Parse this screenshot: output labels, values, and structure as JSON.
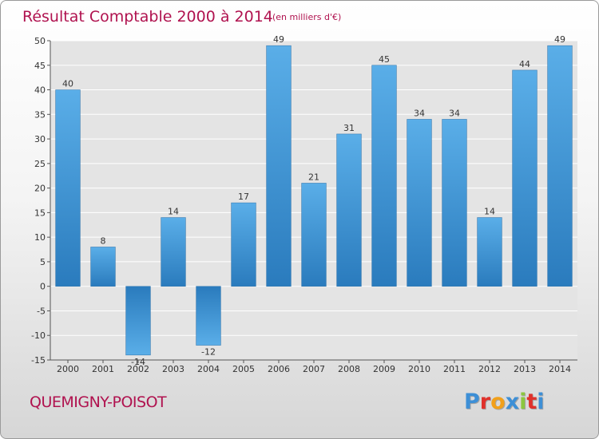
{
  "chart_data": {
    "type": "bar",
    "title": "Résultat Comptable 2000 à 2014",
    "subtitle": "(en milliers d'€)",
    "categories": [
      "2000",
      "2001",
      "2002",
      "2003",
      "2004",
      "2005",
      "2006",
      "2007",
      "2008",
      "2009",
      "2010",
      "2011",
      "2012",
      "2013",
      "2014"
    ],
    "values": [
      40,
      8,
      -14,
      14,
      -12,
      17,
      49,
      21,
      31,
      45,
      34,
      34,
      14,
      44,
      49
    ],
    "ylim": [
      -15,
      50
    ],
    "yticks": [
      -15,
      -10,
      -5,
      0,
      5,
      10,
      15,
      20,
      25,
      30,
      35,
      40,
      45,
      50
    ],
    "xlabel": "",
    "ylabel": "",
    "grid": true
  },
  "colors": {
    "title": "#b0124f",
    "bar_light": "#5aaee8",
    "bar_dark": "#2c7dbf",
    "text": "#333333",
    "grid": "#ffffff"
  },
  "footer": {
    "place": "QUEMIGNY-POISOT",
    "logo_letters": [
      "P",
      "r",
      "o",
      "x",
      "i",
      "t",
      "i"
    ],
    "logo_colors": [
      "#3d8fd6",
      "#e0312b",
      "#f2a01a",
      "#3d8fd6",
      "#8cc63f",
      "#e0312b",
      "#3d8fd6"
    ]
  }
}
